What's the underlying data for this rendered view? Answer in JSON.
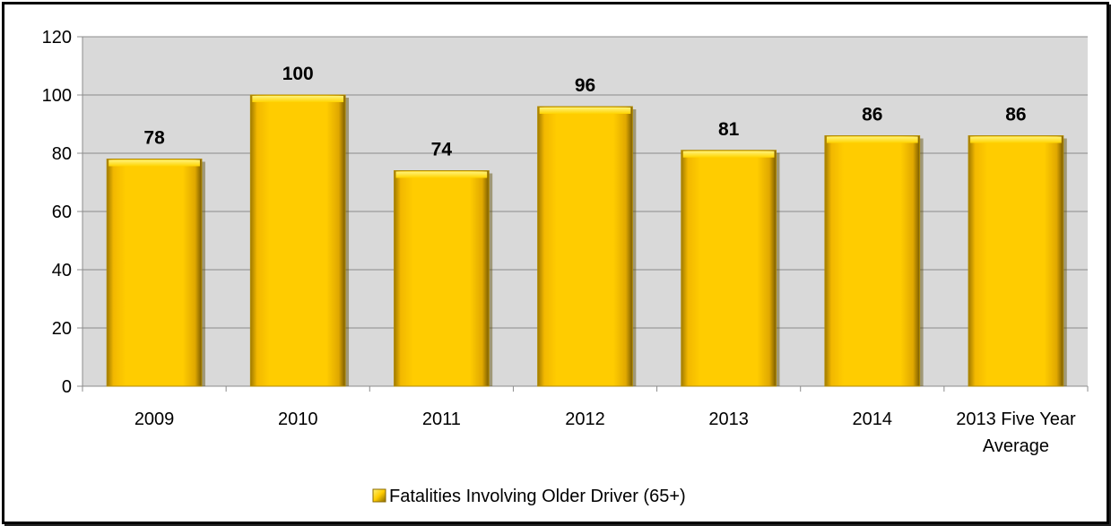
{
  "chart_data": {
    "type": "bar",
    "categories": [
      [
        "2009"
      ],
      [
        "2010"
      ],
      [
        "2011"
      ],
      [
        "2012"
      ],
      [
        "2013"
      ],
      [
        "2014"
      ],
      [
        "2013 Five Year",
        "Average"
      ]
    ],
    "series": [
      {
        "name": "Fatalities Involving Older Driver (65+)",
        "values": [
          78,
          100,
          74,
          96,
          81,
          86,
          86
        ]
      }
    ],
    "ylim": [
      0,
      120
    ],
    "yticks": [
      0,
      20,
      40,
      60,
      80,
      100,
      120
    ],
    "grid": true,
    "legend_position": "bottom",
    "data_labels": [
      "78",
      "100",
      "74",
      "96",
      "81",
      "86",
      "86"
    ],
    "colors": {
      "plot_background": "#d9d9d9",
      "bar_fill": "#ffcc00",
      "bar_top": "#ffe14d",
      "bar_edge_dark": "#b08a00",
      "gridline": "#8c8c8c"
    }
  }
}
